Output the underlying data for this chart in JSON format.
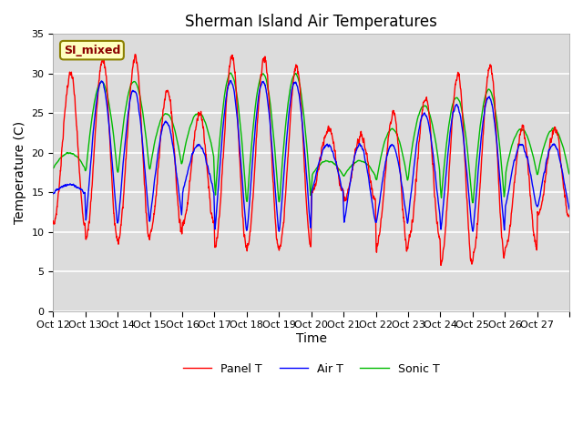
{
  "title": "Sherman Island Air Temperatures",
  "xlabel": "Time",
  "ylabel": "Temperature (C)",
  "ylim": [
    0,
    35
  ],
  "yticks": [
    0,
    5,
    10,
    15,
    20,
    25,
    30,
    35
  ],
  "x_tick_labels": [
    "Oct 12",
    "Oct 13",
    "Oct 14",
    "Oct 15",
    "Oct 16",
    "Oct 17",
    "Oct 18",
    "Oct 19",
    "Oct 20",
    "Oct 21",
    "Oct 22",
    "Oct 23",
    "Oct 24",
    "Oct 25",
    "Oct 26",
    "Oct 27"
  ],
  "panel_color": "#FF0000",
  "air_color": "#0000FF",
  "sonic_color": "#00BB00",
  "legend_label_panel": "Panel T",
  "legend_label_air": "Air T",
  "legend_label_sonic": "Sonic T",
  "annotation_text": "SI_mixed",
  "bg_color": "#DCDCDC",
  "plot_bg": "#DCDCDC",
  "fig_bg": "#FFFFFF",
  "title_fontsize": 12,
  "axis_label_fontsize": 10,
  "tick_fontsize": 8
}
